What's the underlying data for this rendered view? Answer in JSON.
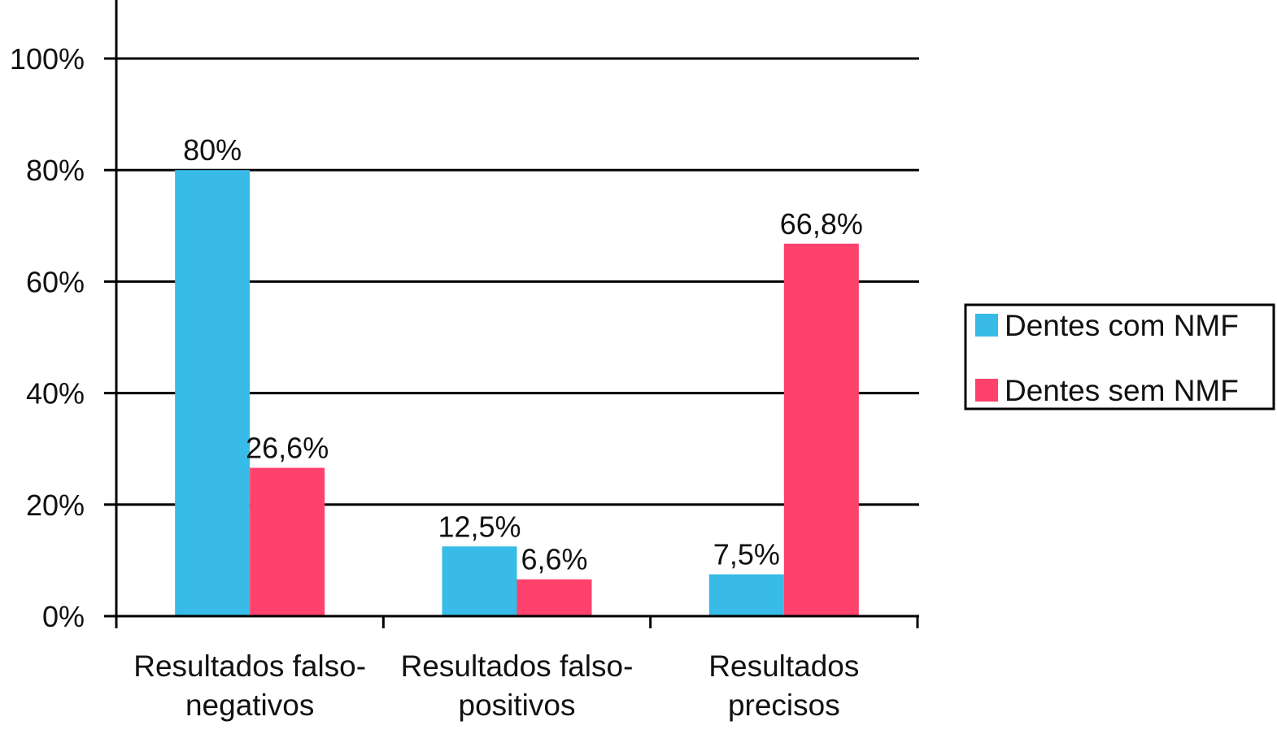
{
  "chart_data": {
    "type": "bar",
    "title": "",
    "xlabel": "",
    "ylabel": "",
    "ylim": [
      0,
      100
    ],
    "yticks": [
      0,
      20,
      40,
      60,
      80,
      100
    ],
    "ytick_labels": [
      "0%",
      "20%",
      "40%",
      "60%",
      "80%",
      "100%"
    ],
    "grid": true,
    "legend_position": "right",
    "categories": [
      [
        "Resultados falso-",
        "negativos"
      ],
      [
        "Resultados falso-",
        "positivos"
      ],
      [
        "Resultados",
        "precisos"
      ]
    ],
    "series": [
      {
        "name": "Dentes com NMF",
        "color": "#38BBE6",
        "values": [
          80,
          12.5,
          7.5
        ],
        "labels": [
          "80%",
          "12,5%",
          "7,5%"
        ]
      },
      {
        "name": "Dentes sem NMF",
        "color": "#FF426C",
        "values": [
          26.6,
          6.6,
          66.8
        ],
        "labels": [
          "26,6%",
          "6,6%",
          "66,8%"
        ]
      }
    ]
  }
}
